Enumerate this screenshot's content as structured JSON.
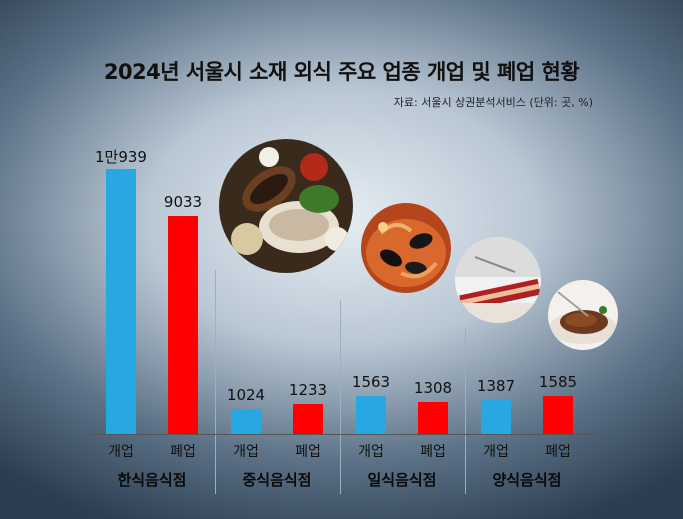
{
  "title": "2024년 서울시 소재 외식 주요 업종 개업 및 폐업 현황",
  "source": "자료: 서울시 상권분석서비스 (단위: 곳, %)",
  "colors": {
    "open": "#27a8e3",
    "close": "#ff0000"
  },
  "chart_data": {
    "type": "bar",
    "title": "2024년 서울시 소재 외식 주요 업종 개업 및 폐업 현황",
    "categories": [
      "한식음식점",
      "중식음식점",
      "일식음식점",
      "양식음식점"
    ],
    "series": [
      {
        "name": "개업",
        "values": [
          10939,
          1024,
          1563,
          1387
        ],
        "labels": [
          "1만939",
          "1024",
          "1563",
          "1387"
        ]
      },
      {
        "name": "폐업",
        "values": [
          9033,
          1233,
          1308,
          1585
        ],
        "labels": [
          "9033",
          "1233",
          "1308",
          "1585"
        ]
      }
    ],
    "ylim": [
      0,
      11000
    ],
    "grid": false,
    "legend": "none"
  },
  "photos": [
    {
      "name": "korean-food-photo-icon"
    },
    {
      "name": "seafood-photo-icon"
    },
    {
      "name": "steak-photo-icon"
    },
    {
      "name": "grilled-meat-photo-icon"
    }
  ]
}
